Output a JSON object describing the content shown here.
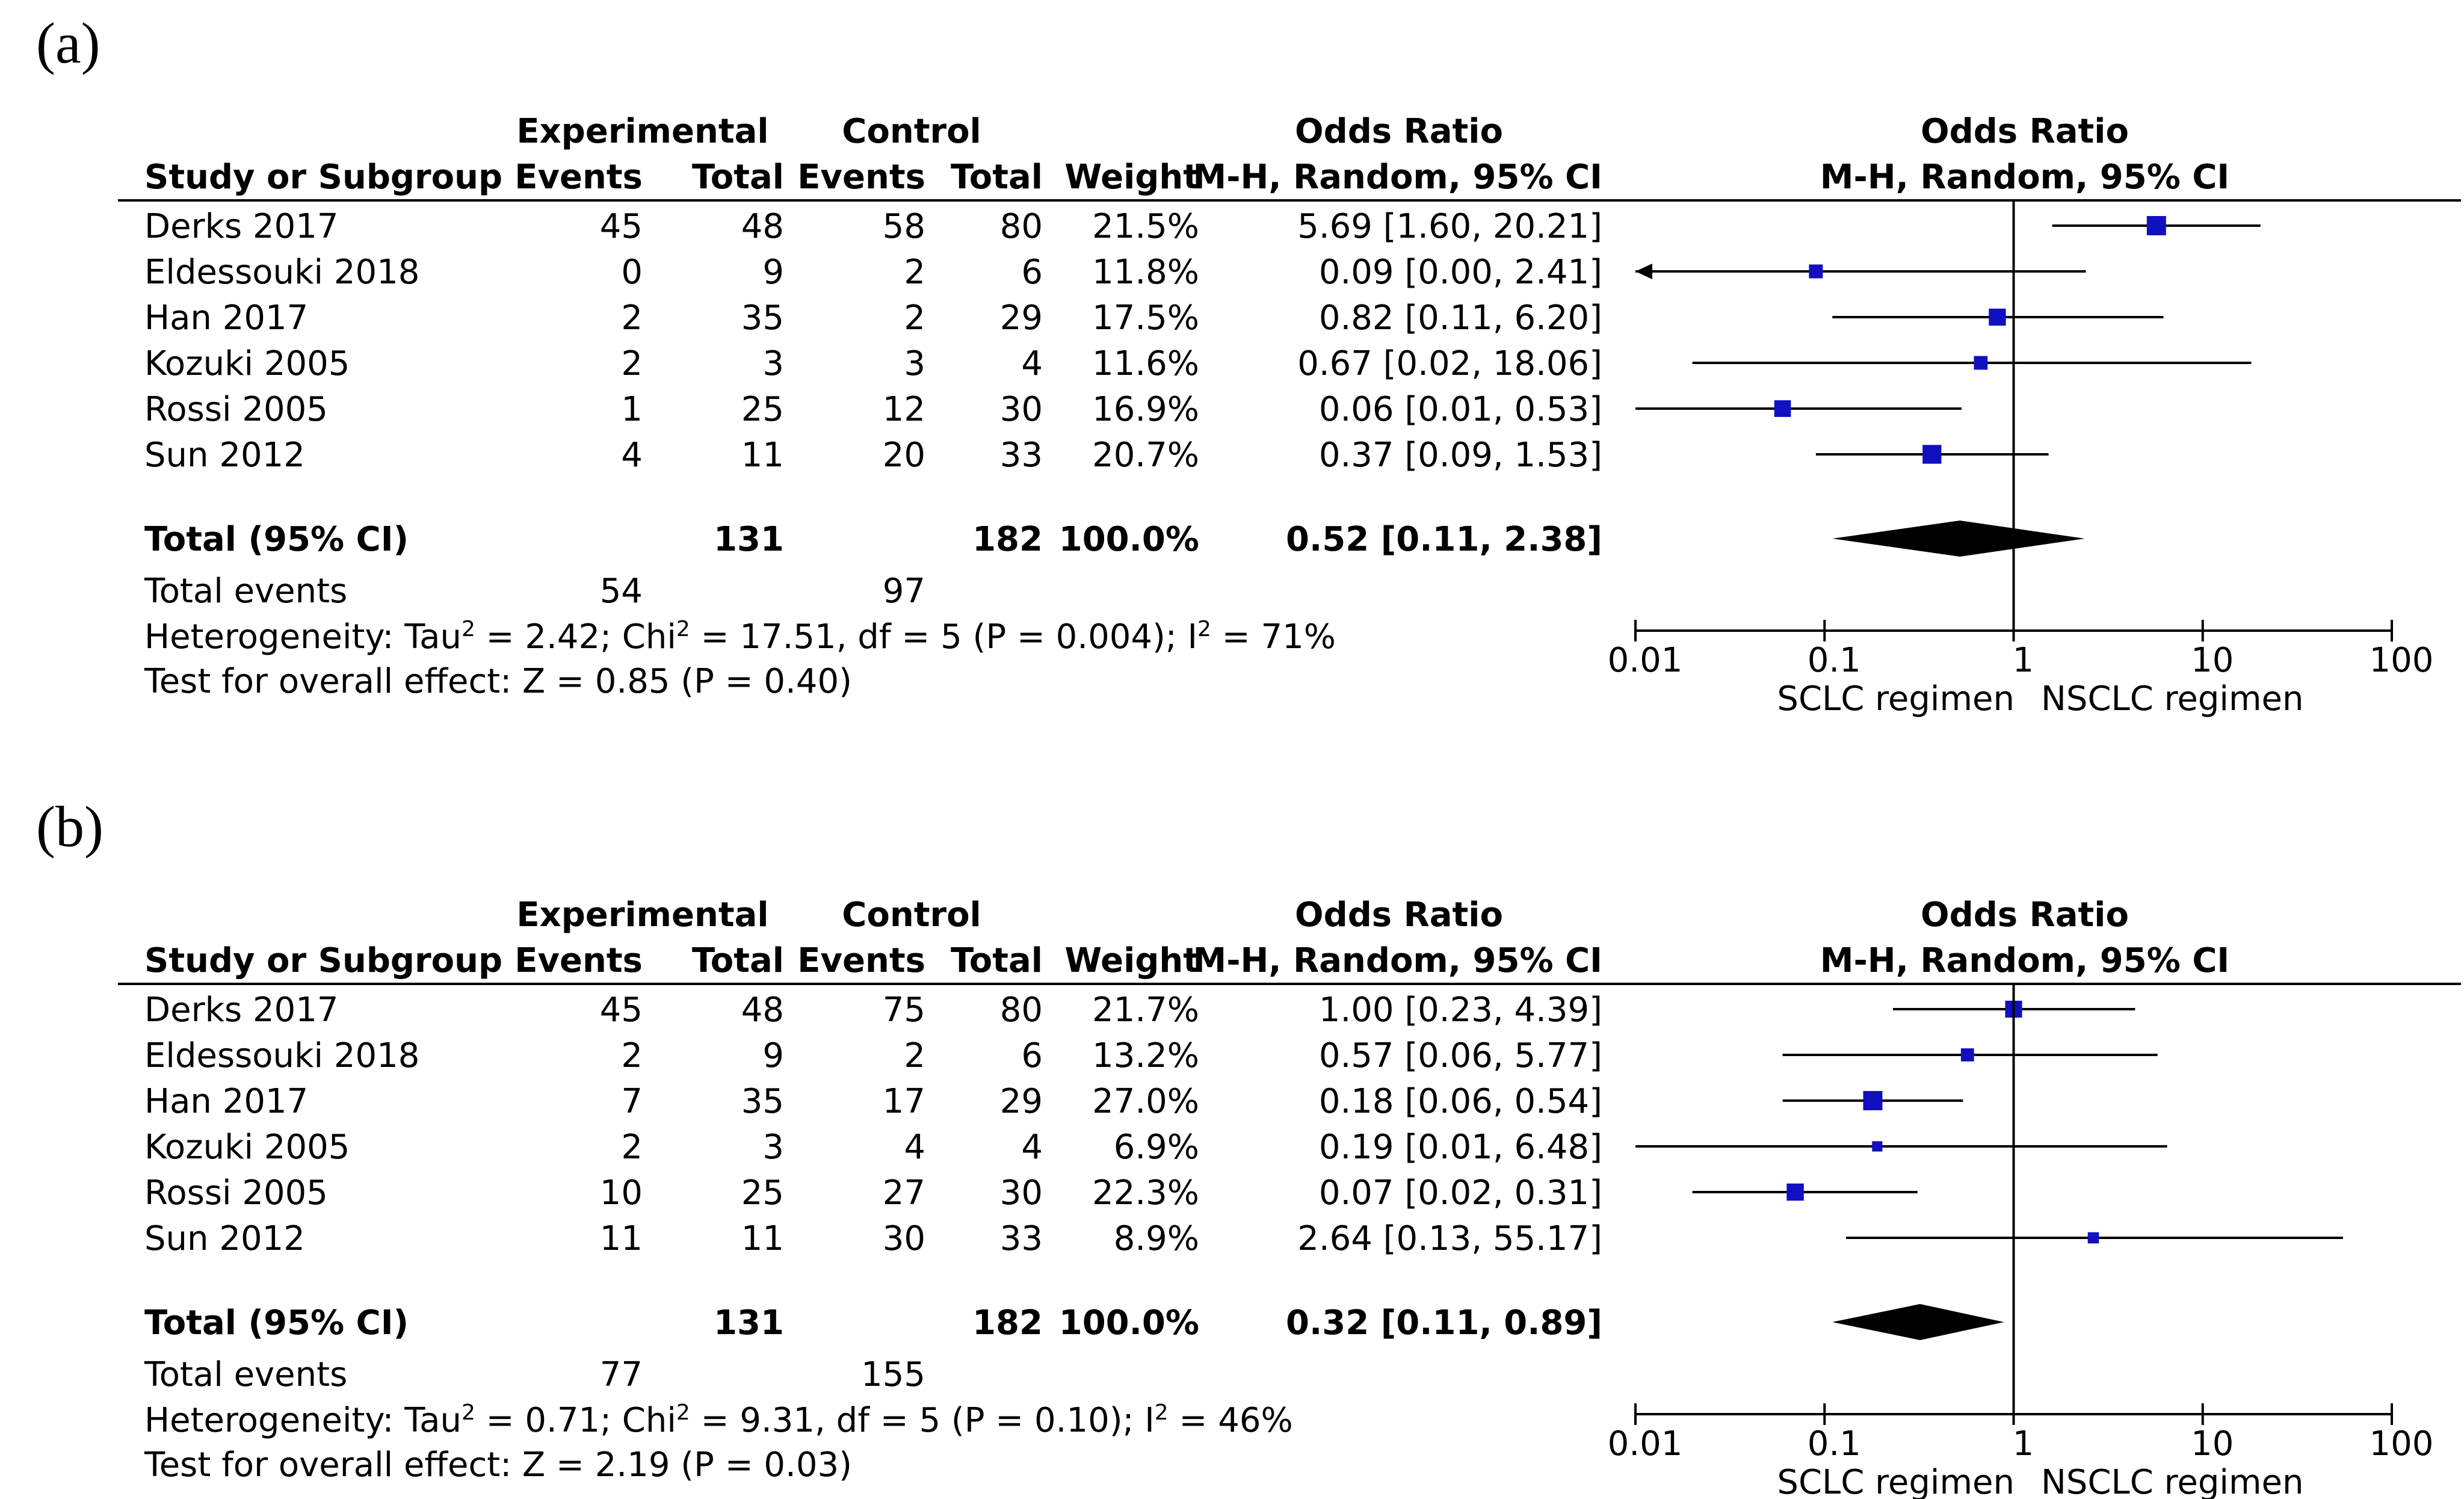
{
  "columns": {
    "experimental": "Experimental",
    "control": "Control",
    "odds_ratio": "Odds Ratio",
    "study": "Study or Subgroup",
    "events": "Events",
    "total": "Total",
    "weight": "Weight",
    "method": "M-H, Random, 95% CI"
  },
  "axis": {
    "ticks": [
      "0.01",
      "0.1",
      "1",
      "10",
      "100"
    ],
    "left_label": "SCLC regimen",
    "right_label": "NSCLC regimen"
  },
  "colors": {
    "marker": "#1010c0",
    "diamond": "#000000",
    "text": "#000000"
  },
  "chart_data": [
    {
      "type": "forest",
      "panel_label": "(a)",
      "scale": "log",
      "xlim": [
        0.01,
        100
      ],
      "studies": [
        {
          "study": "Derks 2017",
          "exp_events": "45",
          "exp_total": "48",
          "ctrl_events": "58",
          "ctrl_total": "80",
          "weight": "21.5%",
          "ci_text": "5.69 [1.60, 20.21]",
          "or": 5.69,
          "lo": 1.6,
          "hi": 20.21
        },
        {
          "study": "Eldessouki 2018",
          "exp_events": "0",
          "exp_total": "9",
          "ctrl_events": "2",
          "ctrl_total": "6",
          "weight": "11.8%",
          "ci_text": "0.09 [0.00, 2.41]",
          "or": 0.09,
          "lo": 0.0,
          "hi": 2.41
        },
        {
          "study": "Han 2017",
          "exp_events": "2",
          "exp_total": "35",
          "ctrl_events": "2",
          "ctrl_total": "29",
          "weight": "17.5%",
          "ci_text": "0.82 [0.11, 6.20]",
          "or": 0.82,
          "lo": 0.11,
          "hi": 6.2
        },
        {
          "study": "Kozuki 2005",
          "exp_events": "2",
          "exp_total": "3",
          "ctrl_events": "3",
          "ctrl_total": "4",
          "weight": "11.6%",
          "ci_text": "0.67 [0.02, 18.06]",
          "or": 0.67,
          "lo": 0.02,
          "hi": 18.06
        },
        {
          "study": "Rossi 2005",
          "exp_events": "1",
          "exp_total": "25",
          "ctrl_events": "12",
          "ctrl_total": "30",
          "weight": "16.9%",
          "ci_text": "0.06 [0.01, 0.53]",
          "or": 0.06,
          "lo": 0.01,
          "hi": 0.53
        },
        {
          "study": "Sun 2012",
          "exp_events": "4",
          "exp_total": "11",
          "ctrl_events": "20",
          "ctrl_total": "33",
          "weight": "20.7%",
          "ci_text": "0.37 [0.09, 1.53]",
          "or": 0.37,
          "lo": 0.09,
          "hi": 1.53
        }
      ],
      "total": {
        "label": "Total (95% CI)",
        "exp_total": "131",
        "ctrl_total": "182",
        "weight": "100.0%",
        "ci_text": "0.52 [0.11, 2.38]",
        "or": 0.52,
        "lo": 0.11,
        "hi": 2.38
      },
      "events": {
        "label": "Total events",
        "exp": "54",
        "ctrl": "97"
      },
      "heterogeneity": {
        "prefix": "Heterogeneity: Tau",
        "tau2": "2.42",
        "chi2": "17.51",
        "df": "5",
        "p": "0.004",
        "i2": "71%"
      },
      "overall": "Test for overall effect: Z = 0.85 (P = 0.40)"
    },
    {
      "type": "forest",
      "panel_label": "(b)",
      "scale": "log",
      "xlim": [
        0.01,
        100
      ],
      "studies": [
        {
          "study": "Derks 2017",
          "exp_events": "45",
          "exp_total": "48",
          "ctrl_events": "75",
          "ctrl_total": "80",
          "weight": "21.7%",
          "ci_text": "1.00 [0.23, 4.39]",
          "or": 1.0,
          "lo": 0.23,
          "hi": 4.39
        },
        {
          "study": "Eldessouki 2018",
          "exp_events": "2",
          "exp_total": "9",
          "ctrl_events": "2",
          "ctrl_total": "6",
          "weight": "13.2%",
          "ci_text": "0.57 [0.06, 5.77]",
          "or": 0.57,
          "lo": 0.06,
          "hi": 5.77
        },
        {
          "study": "Han 2017",
          "exp_events": "7",
          "exp_total": "35",
          "ctrl_events": "17",
          "ctrl_total": "29",
          "weight": "27.0%",
          "ci_text": "0.18 [0.06, 0.54]",
          "or": 0.18,
          "lo": 0.06,
          "hi": 0.54
        },
        {
          "study": "Kozuki 2005",
          "exp_events": "2",
          "exp_total": "3",
          "ctrl_events": "4",
          "ctrl_total": "4",
          "weight": "6.9%",
          "ci_text": "0.19 [0.01, 6.48]",
          "or": 0.19,
          "lo": 0.01,
          "hi": 6.48
        },
        {
          "study": "Rossi 2005",
          "exp_events": "10",
          "exp_total": "25",
          "ctrl_events": "27",
          "ctrl_total": "30",
          "weight": "22.3%",
          "ci_text": "0.07 [0.02, 0.31]",
          "or": 0.07,
          "lo": 0.02,
          "hi": 0.31
        },
        {
          "study": "Sun 2012",
          "exp_events": "11",
          "exp_total": "11",
          "ctrl_events": "30",
          "ctrl_total": "33",
          "weight": "8.9%",
          "ci_text": "2.64 [0.13, 55.17]",
          "or": 2.64,
          "lo": 0.13,
          "hi": 55.17
        }
      ],
      "total": {
        "label": "Total (95% CI)",
        "exp_total": "131",
        "ctrl_total": "182",
        "weight": "100.0%",
        "ci_text": "0.32 [0.11, 0.89]",
        "or": 0.32,
        "lo": 0.11,
        "hi": 0.89
      },
      "events": {
        "label": "Total events",
        "exp": "77",
        "ctrl": "155"
      },
      "heterogeneity": {
        "prefix": "Heterogeneity: Tau",
        "tau2": "0.71",
        "chi2": "9.31",
        "df": "5",
        "p": "0.10",
        "i2": "46%"
      },
      "overall": "Test for overall effect: Z = 2.19 (P = 0.03)"
    }
  ]
}
